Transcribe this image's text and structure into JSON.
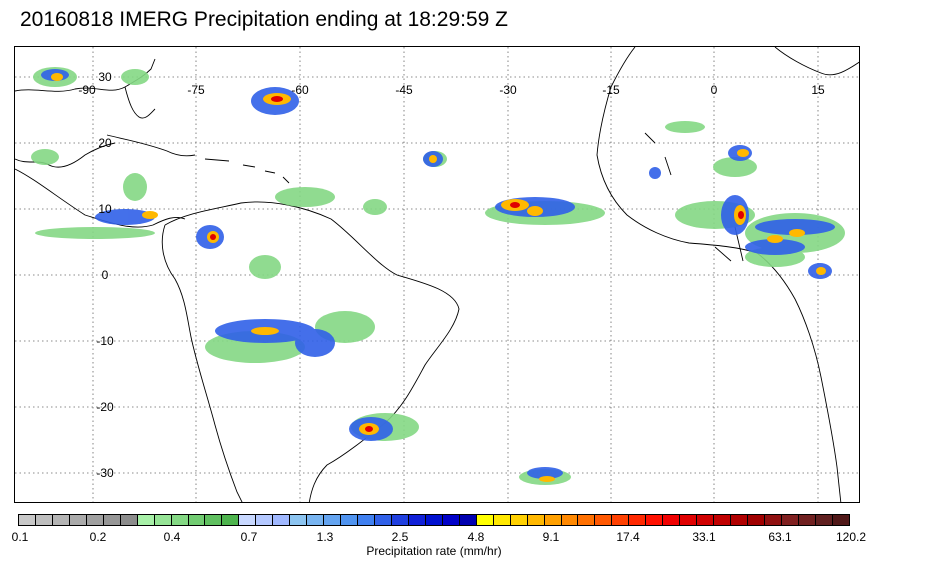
{
  "title": "20160818 IMERG Precipitation ending at 18:29:59 Z",
  "map": {
    "lon_labels": [
      "-90",
      "-75",
      "-60",
      "-45",
      "-30",
      "-15",
      "0",
      "15"
    ],
    "lat_labels": [
      "30",
      "20",
      "10",
      "0",
      "-10",
      "-20",
      "-30"
    ]
  },
  "colorbar": {
    "title": "Precipitation rate (mm/hr)",
    "tick_labels": [
      "0.1",
      "0.2",
      "0.4",
      "0.7",
      "1.3",
      "2.5",
      "4.8",
      "9.1",
      "17.4",
      "33.1",
      "63.1",
      "120.2"
    ],
    "colors": [
      "#c8c8c8",
      "#bebebe",
      "#b4b4b4",
      "#aaaaaa",
      "#a0a0a0",
      "#969696",
      "#8c8c8c",
      "#a8f0a8",
      "#96e496",
      "#84d884",
      "#72cc72",
      "#60c060",
      "#4eb44e",
      "#c8d8ff",
      "#b4c8ff",
      "#a0b8ff",
      "#8cc4f0",
      "#78b4f0",
      "#64a4f0",
      "#5094f0",
      "#4080f0",
      "#3060e8",
      "#2040e0",
      "#1020d8",
      "#0010d0",
      "#0000c8",
      "#0000b0",
      "#ffff00",
      "#ffe800",
      "#ffd000",
      "#ffb800",
      "#ffa000",
      "#ff8800",
      "#ff7000",
      "#ff5800",
      "#ff4000",
      "#ff2800",
      "#ff1000",
      "#f00000",
      "#e00000",
      "#d00000",
      "#c00000",
      "#b00000",
      "#a00000",
      "#901010",
      "#802020",
      "#702020",
      "#602020",
      "#501818"
    ]
  }
}
